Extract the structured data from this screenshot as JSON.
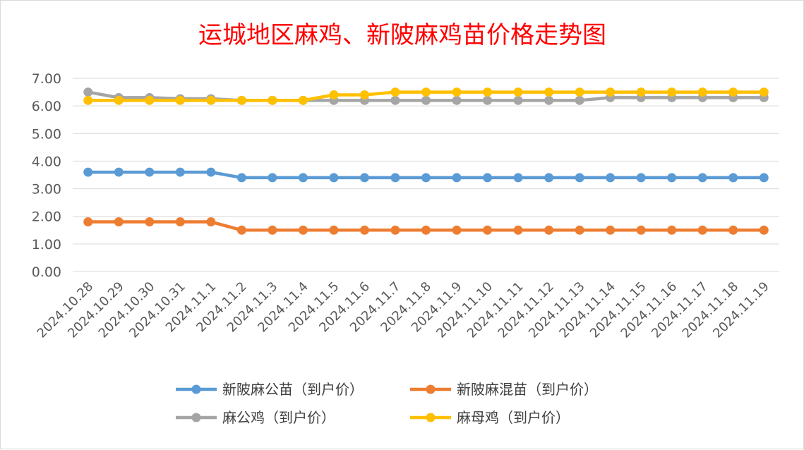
{
  "chart_data": {
    "type": "line",
    "title": "运城地区麻鸡、新陂麻鸡苗价格走势图",
    "xlabel": "",
    "ylabel": "",
    "ylim": [
      0,
      7
    ],
    "yticks": [
      "0.00",
      "1.00",
      "2.00",
      "3.00",
      "4.00",
      "5.00",
      "6.00",
      "7.00"
    ],
    "grid": true,
    "legend_position": "bottom",
    "categories": [
      "2024.10.28",
      "2024.10.29",
      "2024.10.30",
      "2024.10.31",
      "2024.11.1",
      "2024.11.2",
      "2024.11.3",
      "2024.11.4",
      "2024.11.5",
      "2024.11.6",
      "2024.11.7",
      "2024.11.8",
      "2024.11.9",
      "2024.11.10",
      "2024.11.11",
      "2024.11.12",
      "2024.11.13",
      "2024.11.14",
      "2024.11.15",
      "2024.11.16",
      "2024.11.17",
      "2024.11.18",
      "2024.11.19"
    ],
    "series": [
      {
        "name": "新陂麻公苗（到户价）",
        "color": "#5b9bd5",
        "values": [
          3.6,
          3.6,
          3.6,
          3.6,
          3.6,
          3.4,
          3.4,
          3.4,
          3.4,
          3.4,
          3.4,
          3.4,
          3.4,
          3.4,
          3.4,
          3.4,
          3.4,
          3.4,
          3.4,
          3.4,
          3.4,
          3.4,
          3.4
        ]
      },
      {
        "name": "新陂麻混苗（到户价）",
        "color": "#ed7d31",
        "values": [
          1.8,
          1.8,
          1.8,
          1.8,
          1.8,
          1.5,
          1.5,
          1.5,
          1.5,
          1.5,
          1.5,
          1.5,
          1.5,
          1.5,
          1.5,
          1.5,
          1.5,
          1.5,
          1.5,
          1.5,
          1.5,
          1.5,
          1.5
        ]
      },
      {
        "name": "麻公鸡（到户价）",
        "color": "#a5a5a5",
        "values": [
          6.5,
          6.3,
          6.3,
          6.26,
          6.26,
          6.2,
          6.2,
          6.2,
          6.2,
          6.2,
          6.2,
          6.2,
          6.2,
          6.2,
          6.2,
          6.2,
          6.2,
          6.3,
          6.3,
          6.3,
          6.3,
          6.3,
          6.3
        ]
      },
      {
        "name": "麻母鸡（到户价）",
        "color": "#ffc000",
        "values": [
          6.2,
          6.2,
          6.2,
          6.2,
          6.2,
          6.2,
          6.2,
          6.2,
          6.4,
          6.4,
          6.5,
          6.5,
          6.5,
          6.5,
          6.5,
          6.5,
          6.5,
          6.5,
          6.5,
          6.5,
          6.5,
          6.5,
          6.5
        ]
      }
    ]
  }
}
